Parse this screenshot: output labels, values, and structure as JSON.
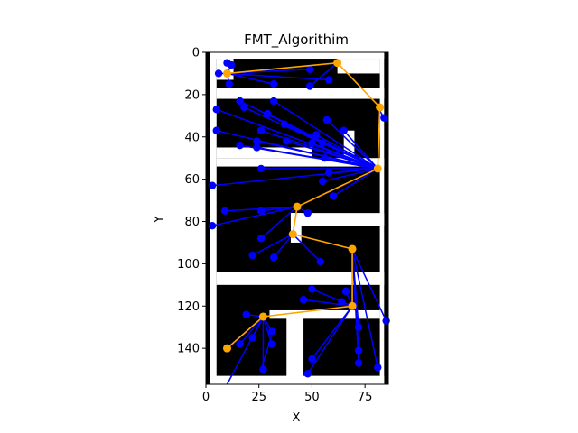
{
  "chart_data": {
    "type": "scatter",
    "title": "FMT_Algorithim",
    "xlabel": "X",
    "ylabel": "Y",
    "xlim": [
      0,
      86
    ],
    "ylim": [
      157,
      0
    ],
    "y_inverted": true,
    "xticks": [
      0,
      25,
      50,
      75
    ],
    "yticks": [
      0,
      20,
      40,
      60,
      80,
      100,
      120,
      140
    ],
    "grid": false,
    "legend": "none",
    "colors": {
      "obstacle": "#000000",
      "free_space": "#ffffff",
      "tree": "#0000ff",
      "path": "#ffa500"
    },
    "occupancy_blocks": [
      {
        "x": [
          0,
          86
        ],
        "y": [
          0,
          157
        ],
        "fill": "obstacle"
      },
      {
        "x": [
          2,
          84
        ],
        "y": [
          0,
          3
        ],
        "fill": "free_space"
      },
      {
        "x": [
          2,
          5
        ],
        "y": [
          0,
          157
        ],
        "fill": "free_space"
      },
      {
        "x": [
          82,
          84
        ],
        "y": [
          0,
          157
        ],
        "fill": "free_space"
      },
      {
        "x": [
          2,
          84
        ],
        "y": [
          153,
          157
        ],
        "fill": "free_space"
      },
      {
        "x": [
          5,
          13
        ],
        "y": [
          3,
          13
        ],
        "fill": "free_space"
      },
      {
        "x": [
          5,
          84
        ],
        "y": [
          17,
          22
        ],
        "fill": "free_space"
      },
      {
        "x": [
          62,
          82
        ],
        "y": [
          3,
          10
        ],
        "fill": "free_space"
      },
      {
        "x": [
          5,
          50
        ],
        "y": [
          45,
          50
        ],
        "fill": "free_space"
      },
      {
        "x": [
          5,
          84
        ],
        "y": [
          50,
          54
        ],
        "fill": "free_space"
      },
      {
        "x": [
          65,
          70
        ],
        "y": [
          37,
          50
        ],
        "fill": "free_space"
      },
      {
        "x": [
          40,
          84
        ],
        "y": [
          76,
          82
        ],
        "fill": "free_space"
      },
      {
        "x": [
          40,
          45
        ],
        "y": [
          76,
          90
        ],
        "fill": "free_space"
      },
      {
        "x": [
          5,
          84
        ],
        "y": [
          104,
          110
        ],
        "fill": "free_space"
      },
      {
        "x": [
          38,
          46
        ],
        "y": [
          125,
          157
        ],
        "fill": "free_space"
      },
      {
        "x": [
          30,
          82
        ],
        "y": [
          122,
          126
        ],
        "fill": "free_space"
      }
    ],
    "tree_nodes": [
      {
        "x": 10,
        "y": 5
      },
      {
        "x": 12,
        "y": 6
      },
      {
        "x": 6,
        "y": 10
      },
      {
        "x": 11,
        "y": 15
      },
      {
        "x": 32,
        "y": 15
      },
      {
        "x": 49,
        "y": 8
      },
      {
        "x": 58,
        "y": 13
      },
      {
        "x": 49,
        "y": 16
      },
      {
        "x": 16,
        "y": 23
      },
      {
        "x": 18,
        "y": 26
      },
      {
        "x": 32,
        "y": 23
      },
      {
        "x": 5,
        "y": 27
      },
      {
        "x": 29,
        "y": 29
      },
      {
        "x": 57,
        "y": 32
      },
      {
        "x": 37,
        "y": 34
      },
      {
        "x": 84,
        "y": 31
      },
      {
        "x": 5,
        "y": 37
      },
      {
        "x": 26,
        "y": 37
      },
      {
        "x": 52,
        "y": 39
      },
      {
        "x": 65,
        "y": 37
      },
      {
        "x": 16,
        "y": 44
      },
      {
        "x": 24,
        "y": 42
      },
      {
        "x": 38,
        "y": 42
      },
      {
        "x": 50,
        "y": 43
      },
      {
        "x": 24,
        "y": 45
      },
      {
        "x": 55,
        "y": 43
      },
      {
        "x": 56,
        "y": 50
      },
      {
        "x": 26,
        "y": 55
      },
      {
        "x": 58,
        "y": 57
      },
      {
        "x": 55,
        "y": 61
      },
      {
        "x": 3,
        "y": 63
      },
      {
        "x": 60,
        "y": 68
      },
      {
        "x": 9,
        "y": 75
      },
      {
        "x": 26,
        "y": 75
      },
      {
        "x": 48,
        "y": 76
      },
      {
        "x": 3,
        "y": 82
      },
      {
        "x": 26,
        "y": 88
      },
      {
        "x": 22,
        "y": 96
      },
      {
        "x": 32,
        "y": 97
      },
      {
        "x": 54,
        "y": 99
      },
      {
        "x": 50,
        "y": 112
      },
      {
        "x": 46,
        "y": 117
      },
      {
        "x": 66,
        "y": 113
      },
      {
        "x": 64,
        "y": 118
      },
      {
        "x": 19,
        "y": 124
      },
      {
        "x": 85,
        "y": 127
      },
      {
        "x": 72,
        "y": 130
      },
      {
        "x": 22,
        "y": 135
      },
      {
        "x": 31,
        "y": 132
      },
      {
        "x": 31,
        "y": 138
      },
      {
        "x": 16,
        "y": 138
      },
      {
        "x": 72,
        "y": 141
      },
      {
        "x": 50,
        "y": 145
      },
      {
        "x": 72,
        "y": 147
      },
      {
        "x": 27,
        "y": 150
      },
      {
        "x": 81,
        "y": 149
      },
      {
        "x": 48,
        "y": 152
      }
    ],
    "tree_edges": [
      [
        12,
        6,
        10,
        10
      ],
      [
        6,
        10,
        10,
        10
      ],
      [
        11,
        15,
        10,
        10
      ],
      [
        32,
        15,
        10,
        10
      ],
      [
        49,
        8,
        10,
        10
      ],
      [
        58,
        13,
        10,
        10
      ],
      [
        49,
        16,
        62,
        5
      ],
      [
        84,
        31,
        81,
        26
      ],
      [
        16,
        23,
        81,
        55
      ],
      [
        18,
        26,
        81,
        55
      ],
      [
        32,
        23,
        81,
        55
      ],
      [
        5,
        27,
        81,
        55
      ],
      [
        29,
        29,
        81,
        55
      ],
      [
        57,
        32,
        81,
        55
      ],
      [
        37,
        34,
        81,
        55
      ],
      [
        5,
        37,
        81,
        55
      ],
      [
        26,
        37,
        81,
        55
      ],
      [
        52,
        39,
        81,
        55
      ],
      [
        65,
        37,
        81,
        55
      ],
      [
        16,
        44,
        81,
        55
      ],
      [
        24,
        42,
        81,
        55
      ],
      [
        38,
        42,
        81,
        55
      ],
      [
        50,
        43,
        81,
        55
      ],
      [
        24,
        45,
        81,
        55
      ],
      [
        55,
        43,
        81,
        55
      ],
      [
        56,
        50,
        81,
        55
      ],
      [
        26,
        55,
        81,
        55
      ],
      [
        58,
        57,
        81,
        55
      ],
      [
        55,
        61,
        81,
        55
      ],
      [
        3,
        63,
        81,
        55
      ],
      [
        60,
        68,
        81,
        55
      ],
      [
        9,
        75,
        43,
        73
      ],
      [
        26,
        75,
        43,
        73
      ],
      [
        48,
        76,
        43,
        73
      ],
      [
        3,
        82,
        43,
        73
      ],
      [
        26,
        88,
        43,
        73
      ],
      [
        22,
        96,
        41,
        86
      ],
      [
        32,
        97,
        41,
        86
      ],
      [
        54,
        99,
        41,
        86
      ],
      [
        50,
        112,
        69,
        120
      ],
      [
        46,
        117,
        69,
        120
      ],
      [
        66,
        113,
        69,
        120
      ],
      [
        64,
        118,
        69,
        120
      ],
      [
        85,
        127,
        69,
        93
      ],
      [
        72,
        130,
        69,
        93
      ],
      [
        72,
        141,
        69,
        93
      ],
      [
        72,
        147,
        69,
        93
      ],
      [
        81,
        149,
        69,
        93
      ],
      [
        50,
        145,
        69,
        120
      ],
      [
        48,
        152,
        69,
        120
      ],
      [
        19,
        124,
        27,
        125
      ],
      [
        22,
        135,
        27,
        125
      ],
      [
        31,
        132,
        27,
        125
      ],
      [
        31,
        138,
        27,
        125
      ],
      [
        16,
        138,
        27,
        125
      ],
      [
        27,
        150,
        27,
        125
      ],
      [
        10,
        157,
        27,
        125
      ],
      [
        26,
        150,
        31,
        134
      ],
      [
        10,
        140,
        27,
        125
      ]
    ],
    "path": [
      {
        "x": 10,
        "y": 140
      },
      {
        "x": 27,
        "y": 125
      },
      {
        "x": 69,
        "y": 120
      },
      {
        "x": 69,
        "y": 93
      },
      {
        "x": 41,
        "y": 86
      },
      {
        "x": 43,
        "y": 73
      },
      {
        "x": 81,
        "y": 55
      },
      {
        "x": 82,
        "y": 26
      },
      {
        "x": 62,
        "y": 5
      },
      {
        "x": 10,
        "y": 10
      }
    ]
  }
}
